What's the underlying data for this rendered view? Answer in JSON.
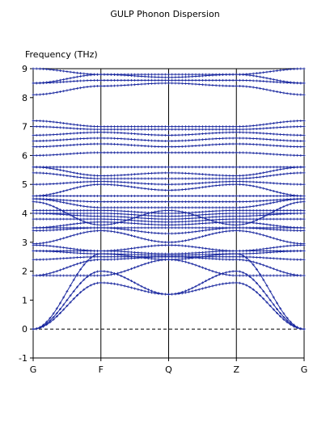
{
  "chart_data": {
    "type": "line",
    "title": "GULP Phonon Dispersion",
    "ylabel": "Frequency (THz)",
    "xlabel": "",
    "ylim": [
      -1,
      9
    ],
    "yticks": [
      "-1",
      "0",
      "1",
      "2",
      "3",
      "4",
      "5",
      "6",
      "7",
      "8",
      "9"
    ],
    "kpoints": [
      "G",
      "F",
      "Q",
      "Z",
      "G"
    ],
    "kpoint_positions": [
      0,
      1,
      2,
      3,
      4
    ],
    "zero_line": true,
    "line_color": "#1c2aa0",
    "marker": "plus",
    "band_count_approx": 36,
    "series": [
      {
        "x": [
          0,
          1,
          2,
          3,
          4
        ],
        "y": [
          0.0,
          1.6,
          1.2,
          1.6,
          0.0
        ]
      },
      {
        "x": [
          0,
          1,
          2,
          3,
          4
        ],
        "y": [
          0.0,
          2.0,
          1.2,
          2.0,
          0.0
        ]
      },
      {
        "x": [
          0,
          1,
          2,
          3,
          4
        ],
        "y": [
          0.0,
          2.6,
          2.4,
          2.6,
          0.0
        ]
      },
      {
        "x": [
          0,
          1,
          2,
          3,
          4
        ],
        "y": [
          1.85,
          1.85,
          2.4,
          1.85,
          1.85
        ]
      },
      {
        "x": [
          0,
          1,
          2,
          3,
          4
        ],
        "y": [
          1.85,
          2.4,
          2.5,
          2.4,
          1.85
        ]
      },
      {
        "x": [
          0,
          1,
          2,
          3,
          4
        ],
        "y": [
          2.4,
          2.5,
          2.5,
          2.5,
          2.4
        ]
      },
      {
        "x": [
          0,
          1,
          2,
          3,
          4
        ],
        "y": [
          2.7,
          2.6,
          2.55,
          2.6,
          2.7
        ]
      },
      {
        "x": [
          0,
          1,
          2,
          3,
          4
        ],
        "y": [
          2.7,
          2.7,
          2.6,
          2.7,
          2.7
        ]
      },
      {
        "x": [
          0,
          1,
          2,
          3,
          4
        ],
        "y": [
          2.9,
          2.7,
          2.9,
          2.7,
          2.9
        ]
      },
      {
        "x": [
          0,
          1,
          2,
          3,
          4
        ],
        "y": [
          2.95,
          3.4,
          3.0,
          3.4,
          2.95
        ]
      },
      {
        "x": [
          0,
          1,
          2,
          3,
          4
        ],
        "y": [
          3.4,
          3.5,
          3.3,
          3.5,
          3.4
        ]
      },
      {
        "x": [
          0,
          1,
          2,
          3,
          4
        ],
        "y": [
          3.5,
          3.5,
          3.5,
          3.5,
          3.5
        ]
      },
      {
        "x": [
          0,
          1,
          2,
          3,
          4
        ],
        "y": [
          3.5,
          3.7,
          3.6,
          3.7,
          3.5
        ]
      },
      {
        "x": [
          0,
          1,
          2,
          3,
          4
        ],
        "y": [
          3.8,
          3.8,
          3.7,
          3.8,
          3.8
        ]
      },
      {
        "x": [
          0,
          1,
          2,
          3,
          4
        ],
        "y": [
          4.0,
          3.9,
          3.8,
          3.9,
          4.0
        ]
      },
      {
        "x": [
          0,
          1,
          2,
          3,
          4
        ],
        "y": [
          4.0,
          4.0,
          3.9,
          4.0,
          4.0
        ]
      },
      {
        "x": [
          0,
          1,
          2,
          3,
          4
        ],
        "y": [
          4.1,
          4.1,
          4.0,
          4.1,
          4.1
        ]
      },
      {
        "x": [
          0,
          1,
          2,
          3,
          4
        ],
        "y": [
          4.4,
          3.6,
          4.1,
          3.6,
          4.4
        ]
      },
      {
        "x": [
          0,
          1,
          2,
          3,
          4
        ],
        "y": [
          4.5,
          4.2,
          4.2,
          4.2,
          4.5
        ]
      },
      {
        "x": [
          0,
          1,
          2,
          3,
          4
        ],
        "y": [
          4.5,
          4.4,
          4.4,
          4.4,
          4.5
        ]
      },
      {
        "x": [
          0,
          1,
          2,
          3,
          4
        ],
        "y": [
          4.6,
          4.6,
          4.6,
          4.6,
          4.6
        ]
      },
      {
        "x": [
          0,
          1,
          2,
          3,
          4
        ],
        "y": [
          4.6,
          5.0,
          4.8,
          5.0,
          4.6
        ]
      },
      {
        "x": [
          0,
          1,
          2,
          3,
          4
        ],
        "y": [
          5.0,
          5.1,
          5.0,
          5.1,
          5.0
        ]
      },
      {
        "x": [
          0,
          1,
          2,
          3,
          4
        ],
        "y": [
          5.4,
          5.2,
          5.2,
          5.2,
          5.4
        ]
      },
      {
        "x": [
          0,
          1,
          2,
          3,
          4
        ],
        "y": [
          5.6,
          5.3,
          5.4,
          5.3,
          5.6
        ]
      },
      {
        "x": [
          0,
          1,
          2,
          3,
          4
        ],
        "y": [
          5.6,
          5.6,
          5.6,
          5.6,
          5.6
        ]
      },
      {
        "x": [
          0,
          1,
          2,
          3,
          4
        ],
        "y": [
          6.0,
          6.1,
          6.1,
          6.1,
          6.0
        ]
      },
      {
        "x": [
          0,
          1,
          2,
          3,
          4
        ],
        "y": [
          6.3,
          6.4,
          6.3,
          6.4,
          6.3
        ]
      },
      {
        "x": [
          0,
          1,
          2,
          3,
          4
        ],
        "y": [
          6.5,
          6.6,
          6.5,
          6.6,
          6.5
        ]
      },
      {
        "x": [
          0,
          1,
          2,
          3,
          4
        ],
        "y": [
          6.7,
          6.8,
          6.7,
          6.8,
          6.7
        ]
      },
      {
        "x": [
          0,
          1,
          2,
          3,
          4
        ],
        "y": [
          7.0,
          6.9,
          6.9,
          6.9,
          7.0
        ]
      },
      {
        "x": [
          0,
          1,
          2,
          3,
          4
        ],
        "y": [
          7.2,
          7.0,
          7.0,
          7.0,
          7.2
        ]
      },
      {
        "x": [
          0,
          1,
          2,
          3,
          4
        ],
        "y": [
          8.1,
          8.4,
          8.5,
          8.4,
          8.1
        ]
      },
      {
        "x": [
          0,
          1,
          2,
          3,
          4
        ],
        "y": [
          8.5,
          8.6,
          8.6,
          8.6,
          8.5
        ]
      },
      {
        "x": [
          0,
          1,
          2,
          3,
          4
        ],
        "y": [
          8.5,
          8.8,
          8.7,
          8.8,
          8.5
        ]
      },
      {
        "x": [
          0,
          1,
          2,
          3,
          4
        ],
        "y": [
          9.0,
          8.8,
          8.8,
          8.8,
          9.0
        ]
      }
    ]
  }
}
